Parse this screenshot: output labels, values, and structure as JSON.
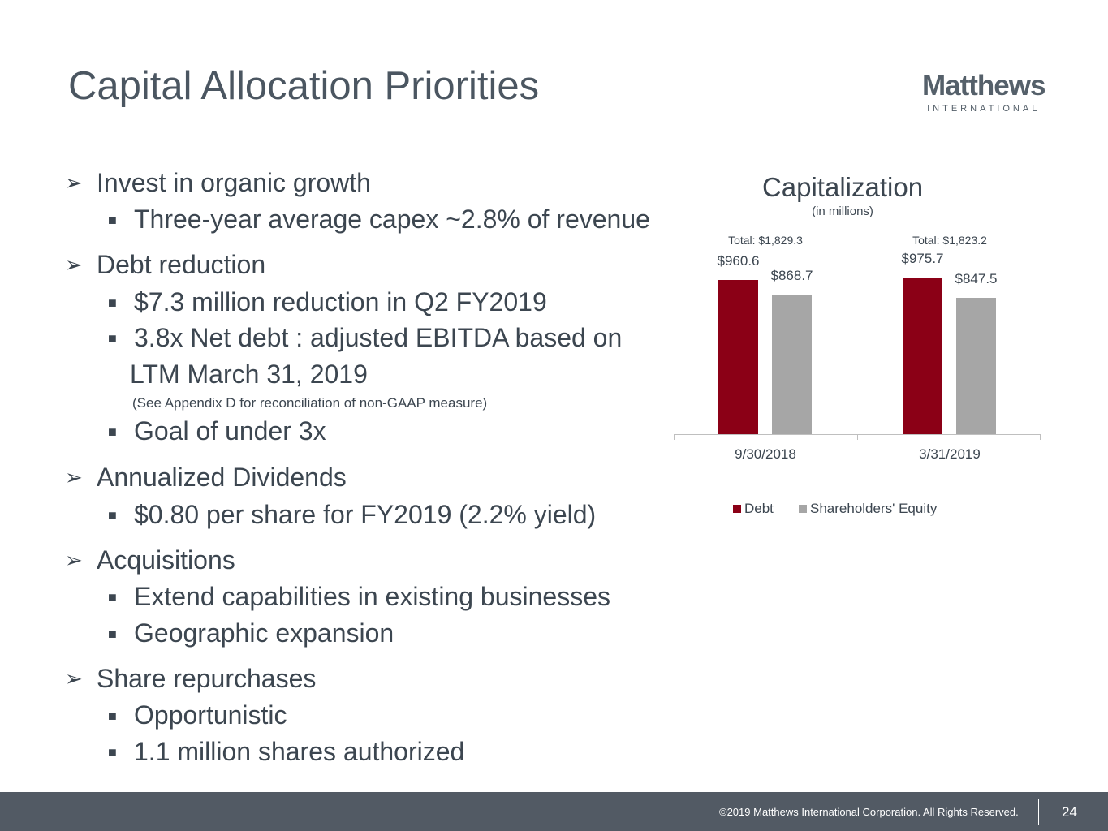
{
  "title": "Capital Allocation Priorities",
  "logo": {
    "name": "Matthews",
    "sub": "INTERNATIONAL"
  },
  "bullets": [
    {
      "level": 1,
      "text": "Invest in organic growth"
    },
    {
      "level": 2,
      "text": "Three-year average capex ~2.8% of revenue"
    },
    {
      "level": 1,
      "text": "Debt reduction"
    },
    {
      "level": 2,
      "text": "$7.3 million reduction in Q2 FY2019"
    },
    {
      "level": 2,
      "text": "3.8x Net debt : adjusted EBITDA based on"
    },
    {
      "level": 3,
      "text": "LTM March 31, 2019"
    },
    {
      "level": 4,
      "text": "(See Appendix D for reconciliation of non-GAAP measure)"
    },
    {
      "level": 2,
      "text": "Goal of under 3x"
    },
    {
      "level": 1,
      "text": "Annualized Dividends"
    },
    {
      "level": 2,
      "text": "$0.80 per share for FY2019 (2.2% yield)"
    },
    {
      "level": 1,
      "text": "Acquisitions"
    },
    {
      "level": 2,
      "text": "Extend capabilities in existing businesses"
    },
    {
      "level": 2,
      "text": "Geographic expansion"
    },
    {
      "level": 1,
      "text": "Share repurchases"
    },
    {
      "level": 2,
      "text": "Opportunistic"
    },
    {
      "level": 2,
      "text": "1.1 million shares authorized"
    }
  ],
  "chart_data": {
    "type": "bar",
    "title": "Capitalization",
    "subtitle": "(in millions)",
    "categories": [
      "9/30/2018",
      "3/31/2019"
    ],
    "totals": [
      "Total: $1,829.3",
      "Total: $1,823.2"
    ],
    "series": [
      {
        "name": "Debt",
        "values": [
          960.6,
          975.7
        ],
        "labels": [
          "$960.6",
          "$975.7"
        ],
        "color": "#8b0016"
      },
      {
        "name": "Shareholders' Equity",
        "values": [
          868.7,
          847.5
        ],
        "labels": [
          "$868.7",
          "$847.5"
        ],
        "color": "#a6a6a6"
      }
    ],
    "legend": "bottom"
  },
  "footer": {
    "copyright": "©2019 Matthews International Corporation. All Rights Reserved.",
    "page": "24"
  }
}
